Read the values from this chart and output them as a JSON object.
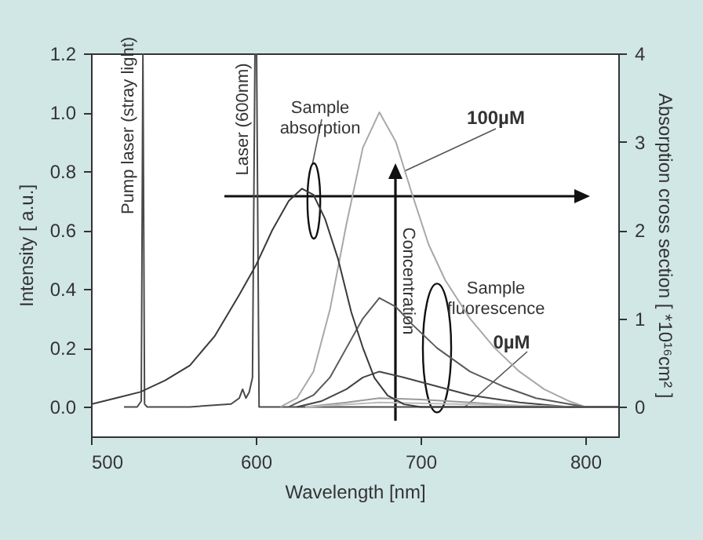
{
  "chart_data": {
    "type": "line",
    "xlabel": "Wavelength [nm]",
    "ylabel": "Intensity [ a.u.]",
    "y2label": "Absorption cross section [ *10¹⁶cm² ]",
    "xlim": [
      500,
      820
    ],
    "xticks": [
      500,
      600,
      700,
      800
    ],
    "ylim": [
      -0.1,
      1.2
    ],
    "yticks": [
      {
        "value": 0,
        "label": "0.0"
      },
      0.2,
      0.4,
      0.6,
      0.8,
      {
        "value": 1,
        "label": "1.0"
      },
      1.2
    ],
    "y2lim": [
      -0.333,
      4
    ],
    "y2ticks": [
      0,
      1,
      2,
      3,
      4
    ],
    "grid": false,
    "marker": "none",
    "line_style": "solid",
    "series": [
      {
        "color": "#3a3a3a",
        "axis": "y2",
        "x": [
          500,
          515,
          530,
          545,
          560,
          575,
          590,
          600,
          610,
          620,
          628,
          635,
          642,
          650,
          658,
          665,
          672,
          680,
          690,
          700,
          720,
          760,
          820
        ],
        "values": [
          0.03,
          0.1,
          0.17,
          0.3,
          0.47,
          0.8,
          1.27,
          1.6,
          2.0,
          2.33,
          2.47,
          2.4,
          2.13,
          1.67,
          1.07,
          0.67,
          0.33,
          0.13,
          0.03,
          0.0,
          0.0,
          0.0,
          0.0
        ]
      },
      {
        "color": "#4a4a4a",
        "x": [
          520,
          528,
          530.5,
          531.5,
          532.5,
          534,
          560,
          585,
          590,
          592,
          594,
          596,
          598,
          599.5,
          600.5,
          602,
          620,
          700,
          820
        ],
        "values": [
          0.0,
          0.0,
          0.02,
          1.2,
          0.01,
          0.0,
          0.0,
          0.01,
          0.03,
          0.06,
          0.03,
          0.05,
          0.1,
          1.2,
          1.2,
          0.0,
          0.0,
          0.0,
          0.0
        ]
      },
      {
        "color": "#a8a8a8",
        "x": [
          615,
          625,
          635,
          645,
          655,
          665,
          675,
          685,
          695,
          705,
          715,
          730,
          745,
          760,
          775,
          790,
          800
        ],
        "values": [
          0.0,
          0.03,
          0.12,
          0.33,
          0.62,
          0.88,
          1.0,
          0.9,
          0.72,
          0.55,
          0.43,
          0.3,
          0.2,
          0.12,
          0.06,
          0.02,
          0.0
        ]
      },
      {
        "color": "#5a5a5a",
        "x": [
          620,
          635,
          645,
          655,
          665,
          675,
          685,
          695,
          710,
          730,
          750,
          770,
          790,
          800
        ],
        "values": [
          0.0,
          0.04,
          0.1,
          0.2,
          0.3,
          0.37,
          0.34,
          0.28,
          0.2,
          0.12,
          0.07,
          0.03,
          0.01,
          0.0
        ]
      },
      {
        "color": "#444444",
        "x": [
          625,
          640,
          655,
          665,
          675,
          690,
          710,
          730,
          760,
          790,
          800
        ],
        "values": [
          0.0,
          0.02,
          0.06,
          0.1,
          0.12,
          0.1,
          0.07,
          0.04,
          0.015,
          0.0,
          0.0
        ]
      },
      {
        "color": "#9a9a9a",
        "x": [
          630,
          655,
          675,
          700,
          730,
          770,
          800
        ],
        "values": [
          0.0,
          0.015,
          0.03,
          0.025,
          0.015,
          0.0,
          0.0
        ]
      },
      {
        "color": "#bbbbbb",
        "x": [
          630,
          675,
          720,
          800
        ],
        "values": [
          0.0,
          0.015,
          0.01,
          0.0
        ]
      }
    ],
    "annotations": [
      "Pump laser (stray light)",
      "Laser (600nm)",
      "Sample absorption",
      {
        "text": "100µM",
        "x": 690,
        "y": 0.8
      },
      "Concentration",
      {
        "text": "Sample fluorescence",
        "x": 710,
        "y": 0.2
      },
      {
        "text": "0µM",
        "x": 727,
        "y": 0.0
      }
    ]
  }
}
